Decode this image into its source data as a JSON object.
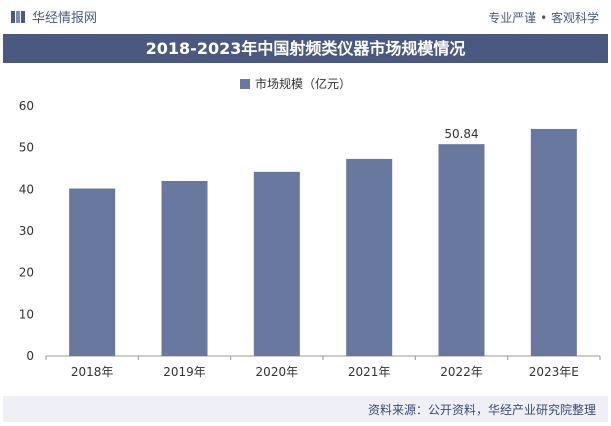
{
  "header": {
    "brand": "华经情报网",
    "tagline": "专业严谨 • 客观科学"
  },
  "colors": {
    "bar": "#68789f",
    "title_bg": "#4b5980",
    "axis_text": "#333333"
  },
  "icons": {
    "logo": "book-logo-icon",
    "legend": "legend-swatch-icon"
  },
  "chart_data": {
    "type": "bar",
    "title": "2018-2023年中国射频类仪器市场规模情况",
    "categories": [
      "2018年",
      "2019年",
      "2020年",
      "2021年",
      "2022年",
      "2023年E"
    ],
    "series": [
      {
        "name": "市场规模（亿元）",
        "values": [
          40.2,
          42.0,
          44.2,
          47.3,
          50.84,
          54.5
        ]
      }
    ],
    "data_labels": {
      "2022年": "50.84"
    },
    "ylim": [
      0,
      60
    ],
    "yticks": [
      0,
      10,
      20,
      30,
      40,
      50,
      60
    ],
    "grid": false,
    "legend_position": "top-center"
  },
  "footer": {
    "source": "资料来源：公开资料，华经产业研究院整理"
  }
}
